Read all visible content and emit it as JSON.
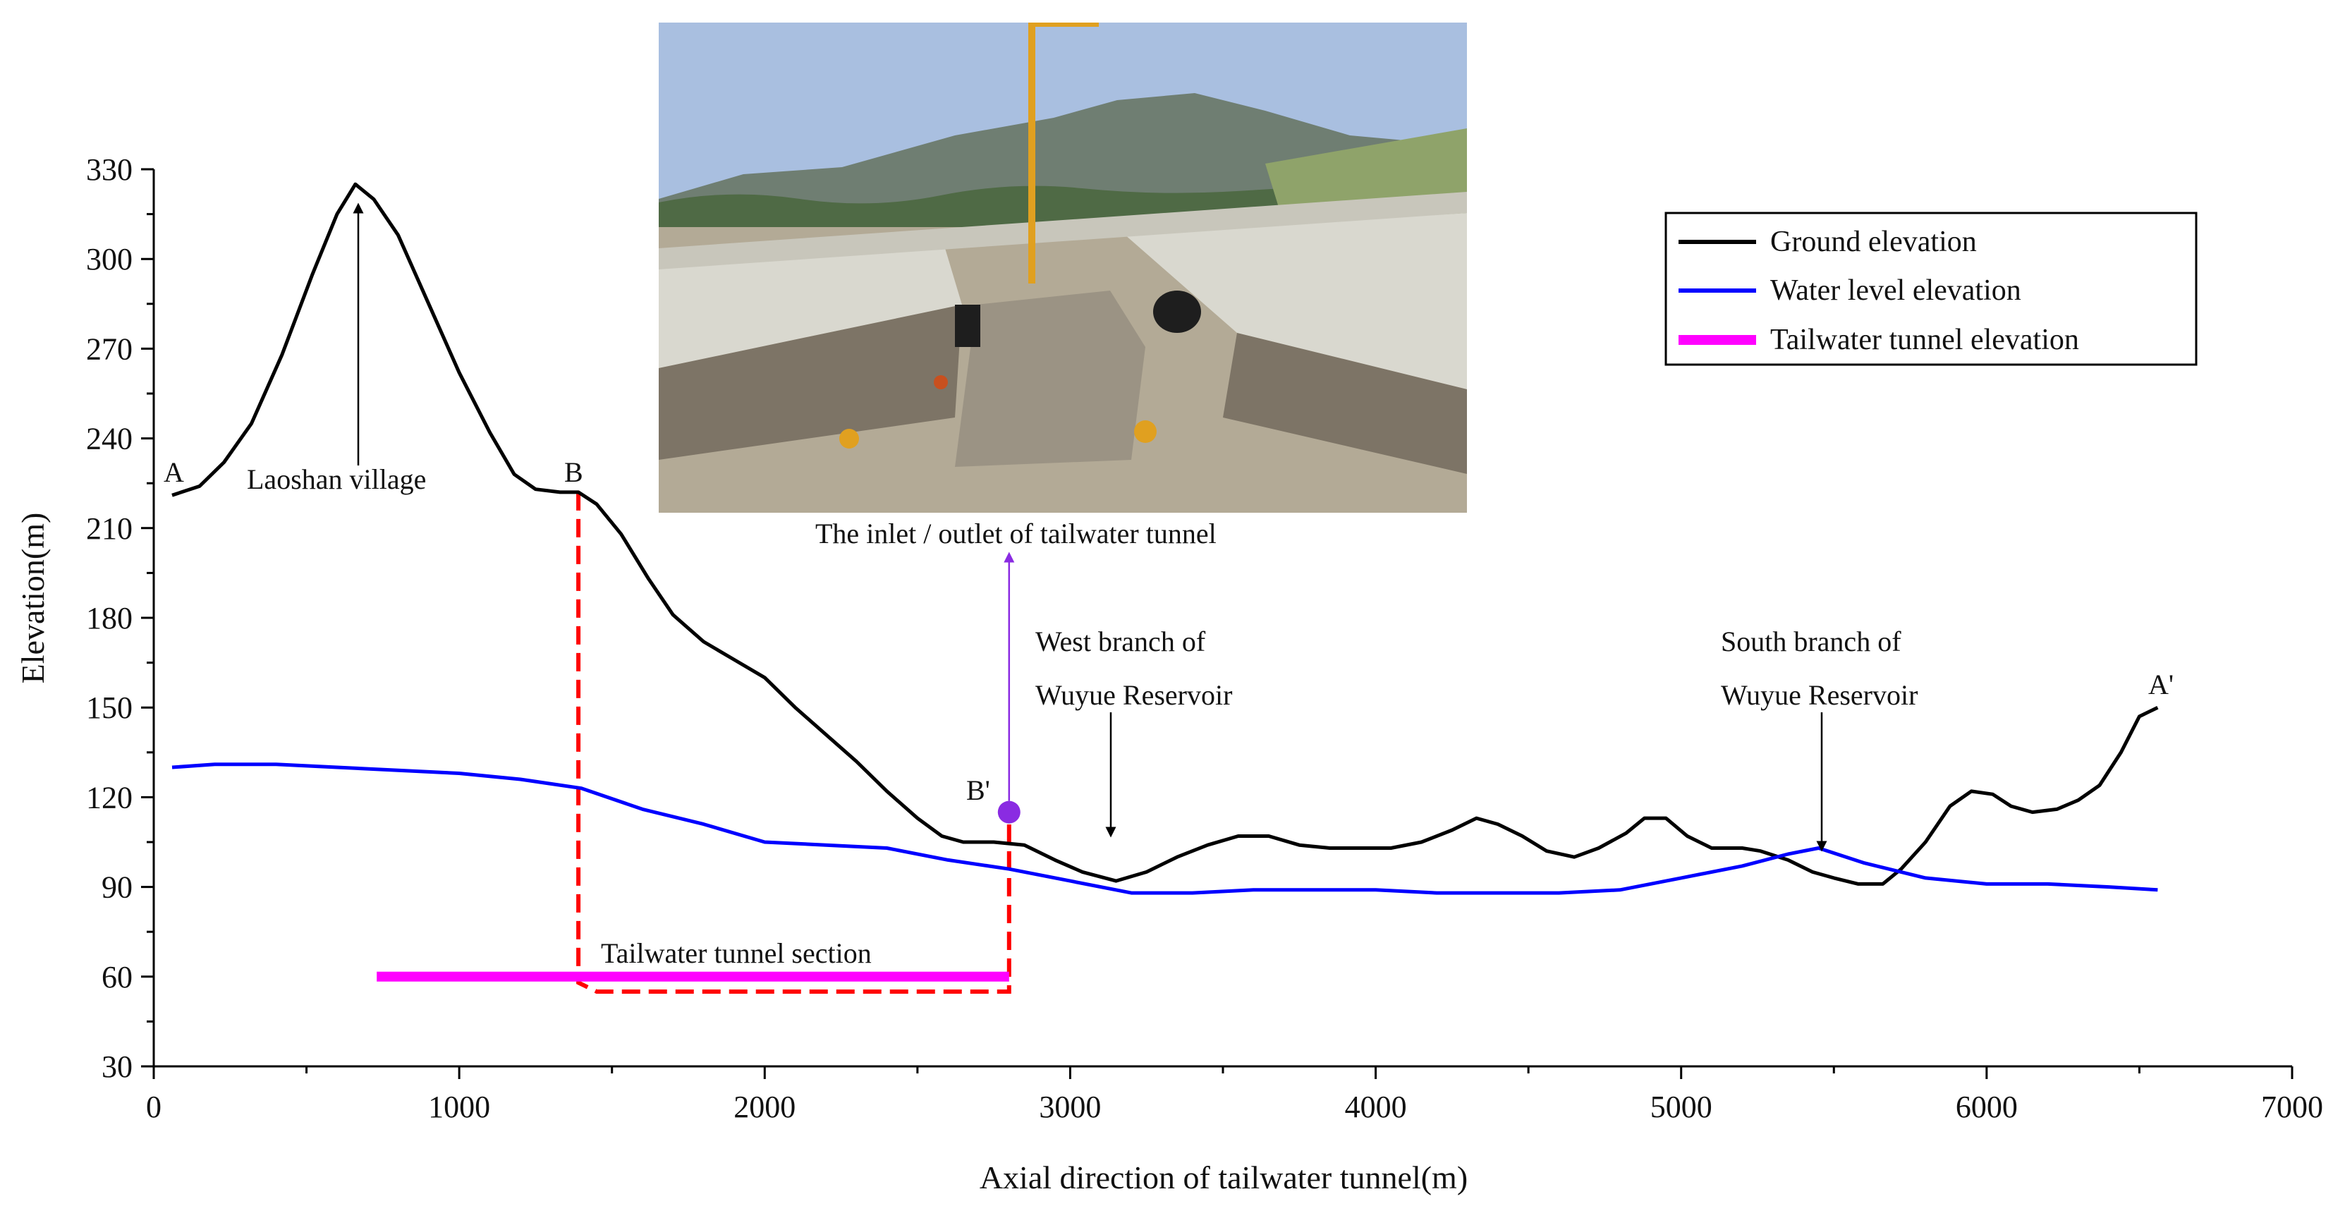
{
  "chart_data": {
    "type": "line",
    "xlabel": "Axial direction of tailwater tunnel(m)",
    "ylabel": "Elevation(m)",
    "xlim": [
      0,
      7000
    ],
    "ylim": [
      30,
      330
    ],
    "xticks": [
      "0",
      "1000",
      "2000",
      "3000",
      "4000",
      "5000",
      "6000",
      "7000"
    ],
    "yticks": [
      "30",
      "60",
      "90",
      "120",
      "150",
      "180",
      "210",
      "240",
      "270",
      "300",
      "330"
    ],
    "grid": false,
    "legend_position": "top-right",
    "series": [
      {
        "name": "Ground elevation",
        "color": "#000000",
        "points": [
          [
            60,
            221
          ],
          [
            150,
            224
          ],
          [
            230,
            232
          ],
          [
            320,
            245
          ],
          [
            420,
            268
          ],
          [
            520,
            295
          ],
          [
            600,
            315
          ],
          [
            660,
            325
          ],
          [
            720,
            320
          ],
          [
            800,
            308
          ],
          [
            900,
            285
          ],
          [
            1000,
            262
          ],
          [
            1100,
            242
          ],
          [
            1180,
            228
          ],
          [
            1250,
            223
          ],
          [
            1330,
            222
          ],
          [
            1390,
            222
          ],
          [
            1450,
            218
          ],
          [
            1530,
            208
          ],
          [
            1620,
            193
          ],
          [
            1700,
            181
          ],
          [
            1800,
            172
          ],
          [
            1900,
            166
          ],
          [
            2000,
            160
          ],
          [
            2100,
            150
          ],
          [
            2200,
            141
          ],
          [
            2300,
            132
          ],
          [
            2400,
            122
          ],
          [
            2500,
            113
          ],
          [
            2580,
            107
          ],
          [
            2650,
            105
          ],
          [
            2750,
            105
          ],
          [
            2850,
            104
          ],
          [
            2950,
            99
          ],
          [
            3040,
            95
          ],
          [
            3150,
            92
          ],
          [
            3250,
            95
          ],
          [
            3350,
            100
          ],
          [
            3450,
            104
          ],
          [
            3550,
            107
          ],
          [
            3650,
            107
          ],
          [
            3750,
            104
          ],
          [
            3850,
            103
          ],
          [
            3950,
            103
          ],
          [
            4050,
            103
          ],
          [
            4150,
            105
          ],
          [
            4250,
            109
          ],
          [
            4330,
            113
          ],
          [
            4400,
            111
          ],
          [
            4480,
            107
          ],
          [
            4560,
            102
          ],
          [
            4650,
            100
          ],
          [
            4730,
            103
          ],
          [
            4820,
            108
          ],
          [
            4880,
            113
          ],
          [
            4950,
            113
          ],
          [
            5020,
            107
          ],
          [
            5100,
            103
          ],
          [
            5200,
            103
          ],
          [
            5260,
            102
          ],
          [
            5350,
            99
          ],
          [
            5430,
            95
          ],
          [
            5500,
            93
          ],
          [
            5580,
            91
          ],
          [
            5660,
            91
          ],
          [
            5720,
            96
          ],
          [
            5800,
            105
          ],
          [
            5880,
            117
          ],
          [
            5950,
            122
          ],
          [
            6020,
            121
          ],
          [
            6080,
            117
          ],
          [
            6150,
            115
          ],
          [
            6230,
            116
          ],
          [
            6300,
            119
          ],
          [
            6370,
            124
          ],
          [
            6440,
            135
          ],
          [
            6500,
            147
          ],
          [
            6560,
            150
          ]
        ]
      },
      {
        "name": "Water level elevation",
        "color": "#0000ff",
        "points": [
          [
            60,
            130
          ],
          [
            200,
            131
          ],
          [
            400,
            131
          ],
          [
            600,
            130
          ],
          [
            800,
            129
          ],
          [
            1000,
            128
          ],
          [
            1200,
            126
          ],
          [
            1400,
            123
          ],
          [
            1600,
            116
          ],
          [
            1800,
            111
          ],
          [
            2000,
            105
          ],
          [
            2200,
            104
          ],
          [
            2400,
            103
          ],
          [
            2600,
            99
          ],
          [
            2800,
            96
          ],
          [
            3000,
            92
          ],
          [
            3200,
            88
          ],
          [
            3400,
            88
          ],
          [
            3600,
            89
          ],
          [
            3800,
            89
          ],
          [
            4000,
            89
          ],
          [
            4200,
            88
          ],
          [
            4400,
            88
          ],
          [
            4600,
            88
          ],
          [
            4800,
            89
          ],
          [
            5000,
            93
          ],
          [
            5200,
            97
          ],
          [
            5350,
            101
          ],
          [
            5450,
            103
          ],
          [
            5600,
            98
          ],
          [
            5800,
            93
          ],
          [
            6000,
            91
          ],
          [
            6200,
            91
          ],
          [
            6400,
            90
          ],
          [
            6560,
            89
          ]
        ]
      },
      {
        "name": "Tailwater tunnel elevation",
        "color": "#ff00ff",
        "points": [
          [
            730,
            60
          ],
          [
            2800,
            60
          ]
        ]
      }
    ],
    "annotations": {
      "point_a": "A",
      "point_b": "B",
      "point_b_prime": "B'",
      "point_a_prime": "A'",
      "laoshan": "Laoshan village",
      "inlet_outlet": "The inlet / outlet of tailwater tunnel",
      "west_branch_1": "West branch of",
      "west_branch_2": "Wuyue Reservoir",
      "south_branch_1": "South branch of",
      "south_branch_2": "Wuyue Reservoir",
      "tunnel_section": "Tailwater tunnel section"
    },
    "section_outline": {
      "color": "#ff0000",
      "points": [
        [
          1390,
          222
        ],
        [
          1390,
          58
        ],
        [
          1450,
          55
        ],
        [
          2800,
          55
        ],
        [
          2800,
          115
        ]
      ]
    },
    "inlet_marker": {
      "x": 2800,
      "y": 115,
      "color": "#8a2be2"
    }
  },
  "photo": {
    "description_name": "construction-site-photo",
    "colors": {
      "sky": "#a9bfe0",
      "mountain": "#6f7e72",
      "concrete": "#d9d8cf",
      "dirt": "#b3aa96",
      "crane": "#e0a020"
    }
  }
}
